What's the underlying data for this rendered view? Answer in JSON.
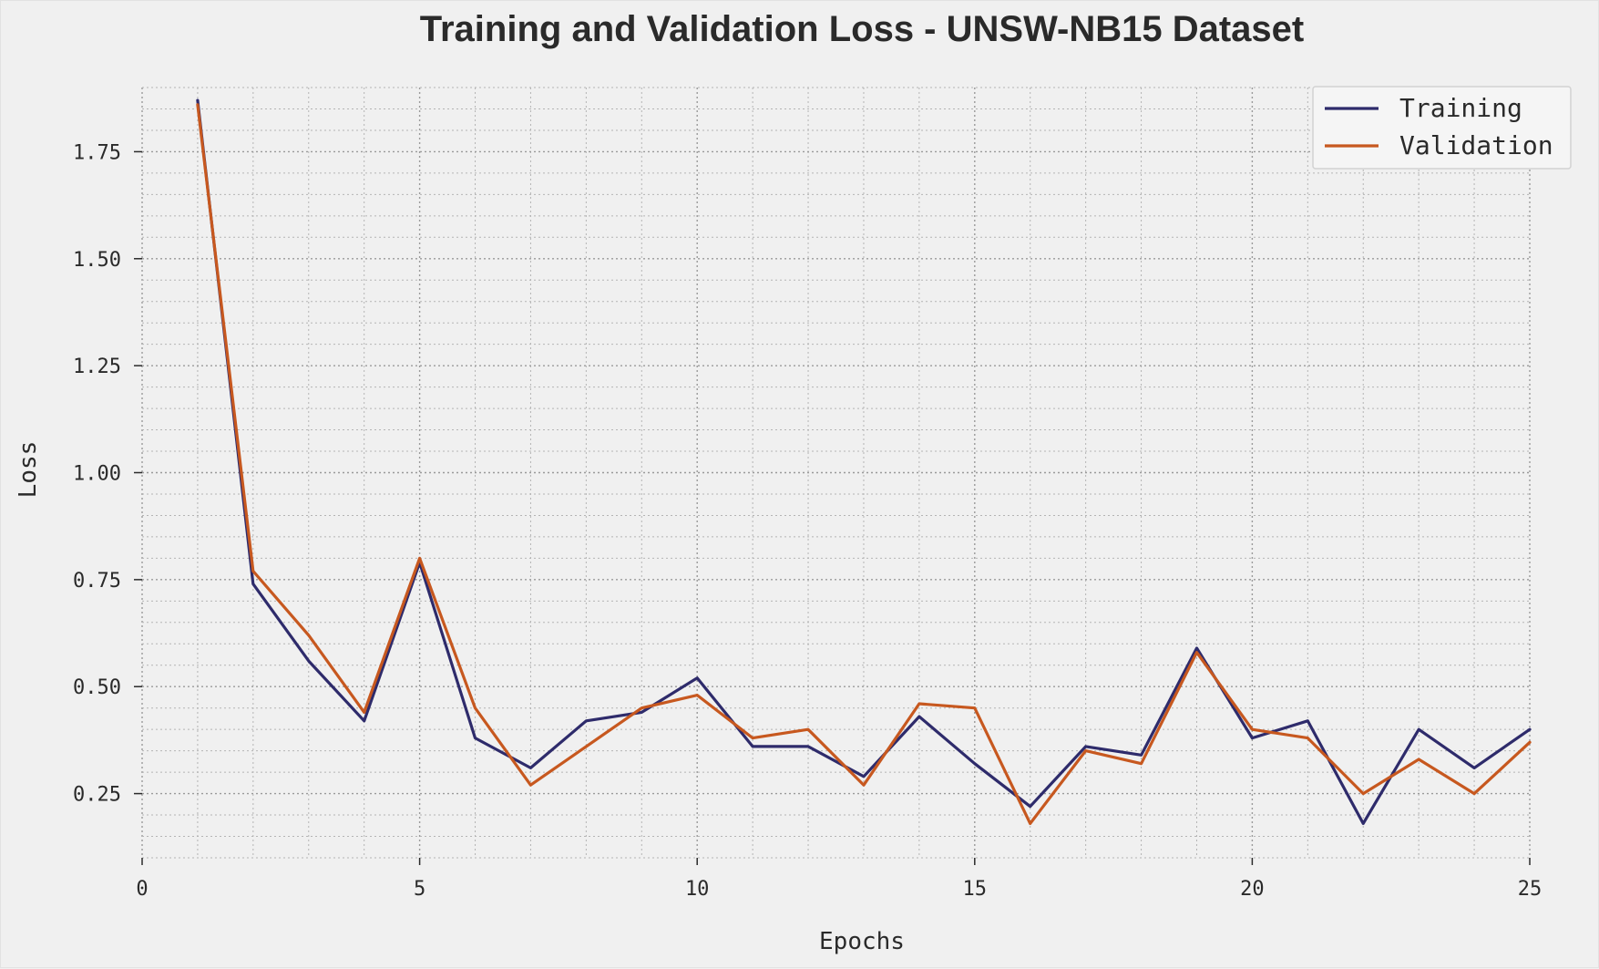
{
  "chart_data": {
    "type": "line",
    "title": "Training and Validation Loss - UNSW-NB15 Dataset",
    "xlabel": "Epochs",
    "ylabel": "Loss",
    "xlim": [
      0,
      25
    ],
    "ylim": [
      0.1,
      1.9
    ],
    "xticks": [
      0,
      5,
      10,
      15,
      20,
      25
    ],
    "xtick_labels": [
      "0",
      "5",
      "10",
      "15",
      "20",
      "25"
    ],
    "yticks": [
      0.25,
      0.5,
      0.75,
      1.0,
      1.25,
      1.5,
      1.75
    ],
    "ytick_labels": [
      "0.25",
      "0.50",
      "0.75",
      "1.00",
      "1.25",
      "1.50",
      "1.75"
    ],
    "grid": true,
    "legend_position": "top-right",
    "x": [
      1,
      2,
      3,
      4,
      5,
      6,
      7,
      8,
      9,
      10,
      11,
      12,
      13,
      14,
      15,
      16,
      17,
      18,
      19,
      20,
      21,
      22,
      23,
      24,
      25
    ],
    "series": [
      {
        "name": "Training",
        "color": "#2e2b6b",
        "values": [
          1.87,
          0.74,
          0.56,
          0.42,
          0.79,
          0.38,
          0.31,
          0.42,
          0.44,
          0.52,
          0.36,
          0.36,
          0.29,
          0.43,
          0.32,
          0.22,
          0.36,
          0.34,
          0.59,
          0.38,
          0.42,
          0.18,
          0.4,
          0.31,
          0.4
        ]
      },
      {
        "name": "Validation",
        "color": "#c7581f",
        "values": [
          1.86,
          0.77,
          0.62,
          0.44,
          0.8,
          0.45,
          0.27,
          0.36,
          0.45,
          0.48,
          0.38,
          0.4,
          0.27,
          0.46,
          0.45,
          0.18,
          0.35,
          0.32,
          0.58,
          0.4,
          0.38,
          0.25,
          0.33,
          0.25,
          0.37
        ]
      }
    ]
  }
}
